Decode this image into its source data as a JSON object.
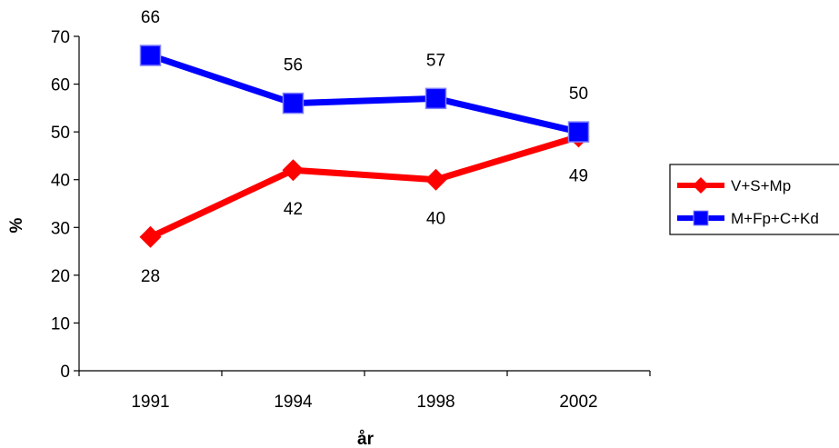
{
  "chart_data": {
    "type": "line",
    "categories": [
      "1991",
      "1994",
      "1998",
      "2002"
    ],
    "xlabel": "år",
    "ylabel": "%",
    "ylim": [
      0,
      70
    ],
    "yticks": [
      "0",
      "10",
      "20",
      "30",
      "40",
      "50",
      "60",
      "70"
    ],
    "grid": false,
    "legend_position": "right",
    "series": [
      {
        "name": "V+S+Mp",
        "values": [
          28,
          42,
          40,
          49
        ],
        "labels": [
          "28",
          "42",
          "40",
          "49"
        ],
        "color": "#ff0000",
        "marker": "diamond-icon"
      },
      {
        "name": "M+Fp+C+Kd",
        "values": [
          66,
          56,
          57,
          50
        ],
        "labels": [
          "66",
          "56",
          "57",
          "50"
        ],
        "color": "#0000ff",
        "marker": "square-icon"
      }
    ]
  }
}
